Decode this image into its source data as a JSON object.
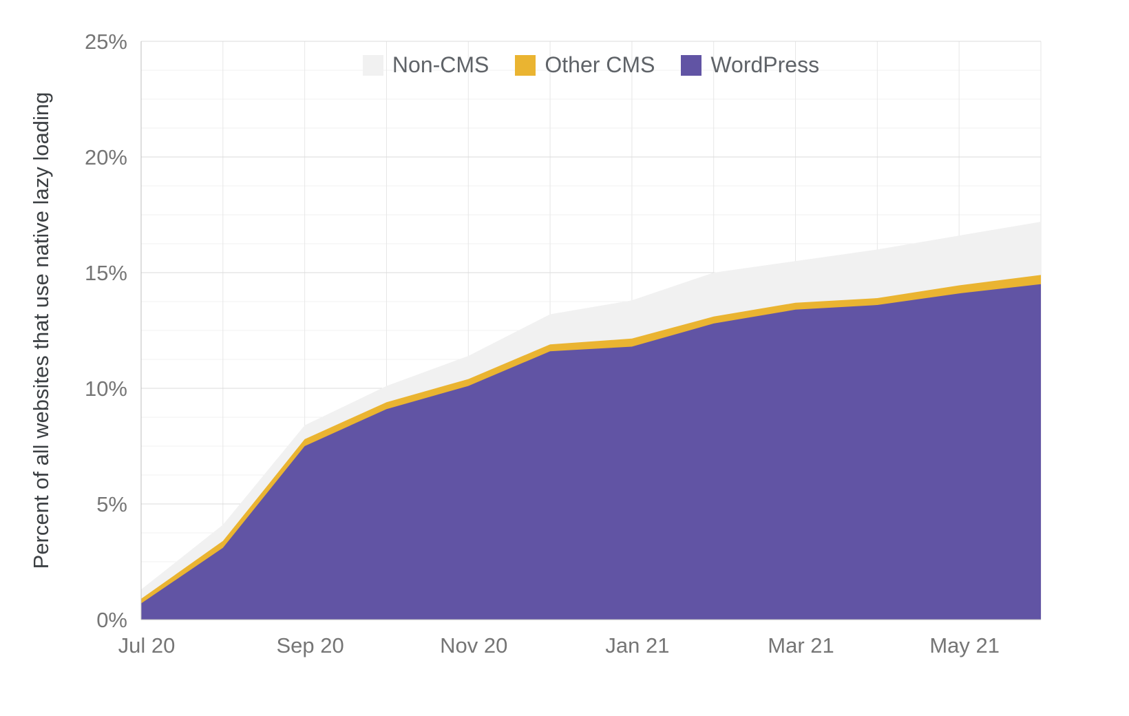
{
  "chart_data": {
    "type": "area",
    "stacked": true,
    "title": "",
    "xlabel": "",
    "ylabel": "Percent of all websites that use native lazy loading",
    "x": [
      "Jul 20",
      "Aug 20",
      "Sep 20",
      "Oct 20",
      "Nov 20",
      "Dec 20",
      "Jan 21",
      "Feb 21",
      "Mar 21",
      "Apr 21",
      "May 21",
      "Jun 21"
    ],
    "x_tick_indices": [
      0,
      2,
      4,
      6,
      8,
      10
    ],
    "x_tick_labels": [
      "Jul 20",
      "Sep 20",
      "Nov 20",
      "Jan 21",
      "Mar 21",
      "May 21"
    ],
    "ylim": [
      0,
      25
    ],
    "y_ticks": [
      0,
      5,
      10,
      15,
      20,
      25
    ],
    "y_tick_labels": [
      "0%",
      "5%",
      "10%",
      "15%",
      "20%",
      "25%"
    ],
    "y_minor_step": 1.25,
    "grid": true,
    "legend_position": "top",
    "legend_order": [
      "Non-CMS",
      "Other CMS",
      "WordPress"
    ],
    "series": [
      {
        "name": "WordPress",
        "color": "#6154a4",
        "values": [
          0.7,
          3.1,
          7.5,
          9.1,
          10.1,
          11.6,
          11.8,
          12.8,
          13.4,
          13.6,
          14.1,
          14.5
        ]
      },
      {
        "name": "Other CMS",
        "color": "#eab431",
        "values": [
          0.2,
          0.3,
          0.3,
          0.3,
          0.3,
          0.3,
          0.35,
          0.3,
          0.3,
          0.3,
          0.35,
          0.4
        ]
      },
      {
        "name": "Non-CMS",
        "color": "#f1f1f1",
        "values": [
          0.4,
          0.7,
          0.6,
          0.7,
          1.0,
          1.3,
          1.65,
          1.9,
          1.8,
          2.1,
          2.15,
          2.3
        ]
      }
    ],
    "totals": [
      1.3,
      4.1,
      8.4,
      10.1,
      11.4,
      13.2,
      13.8,
      15.0,
      15.5,
      16.0,
      16.6,
      17.2
    ]
  }
}
